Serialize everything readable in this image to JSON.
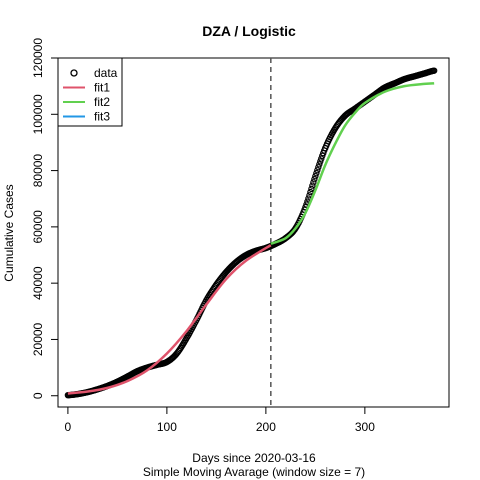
{
  "chart_data": {
    "type": "line",
    "title": "DZA / Logistic",
    "xlabel": "Days since 2020-03-16",
    "xlabel2": "Simple Moving Avarage (window size = 7)",
    "ylabel": "Cumulative Cases",
    "xlim": [
      -10,
      385
    ],
    "ylim": [
      -4000,
      120000
    ],
    "x_ticks": [
      0,
      100,
      200,
      300
    ],
    "y_ticks": [
      0,
      20000,
      40000,
      60000,
      80000,
      100000,
      120000
    ],
    "vline": {
      "x": 205,
      "style": "dashed",
      "color": "#555555"
    },
    "legend": {
      "position": "top-left",
      "entries": [
        "data",
        "fit1",
        "fit2",
        "fit3"
      ]
    },
    "series": [
      {
        "name": "data",
        "style": "points",
        "color": "#000000",
        "x": [
          0,
          10,
          20,
          30,
          40,
          50,
          60,
          70,
          80,
          90,
          100,
          110,
          120,
          130,
          140,
          150,
          160,
          170,
          180,
          190,
          200,
          210,
          220,
          230,
          240,
          250,
          260,
          270,
          280,
          290,
          300,
          310,
          320,
          330,
          340,
          350,
          360,
          370
        ],
        "y": [
          200,
          600,
          1300,
          2300,
          3500,
          5000,
          6800,
          8700,
          10000,
          11000,
          12000,
          15000,
          20500,
          27000,
          34000,
          39500,
          44000,
          47500,
          50000,
          51500,
          52500,
          54000,
          56000,
          59500,
          67000,
          78000,
          88000,
          95000,
          99500,
          102000,
          104500,
          107000,
          109500,
          111000,
          112500,
          113500,
          114500,
          115500
        ]
      },
      {
        "name": "fit1",
        "style": "line",
        "color": "#DF536B",
        "x": [
          0,
          20,
          40,
          60,
          80,
          100,
          120,
          140,
          160,
          180,
          205
        ],
        "y": [
          800,
          1500,
          2800,
          5200,
          9000,
          15000,
          23000,
          32500,
          41500,
          48000,
          53500
        ]
      },
      {
        "name": "fit2",
        "style": "line",
        "color": "#61D04F",
        "x": [
          205,
          220,
          230,
          240,
          250,
          260,
          270,
          280,
          290,
          300,
          320,
          340,
          360,
          370
        ],
        "y": [
          54000,
          56000,
          59500,
          65000,
          73000,
          82000,
          89500,
          96000,
          100500,
          104000,
          108000,
          110000,
          110800,
          111000
        ]
      },
      {
        "name": "fit3",
        "style": "line",
        "color": "#2297E6",
        "x": [],
        "y": []
      }
    ]
  }
}
